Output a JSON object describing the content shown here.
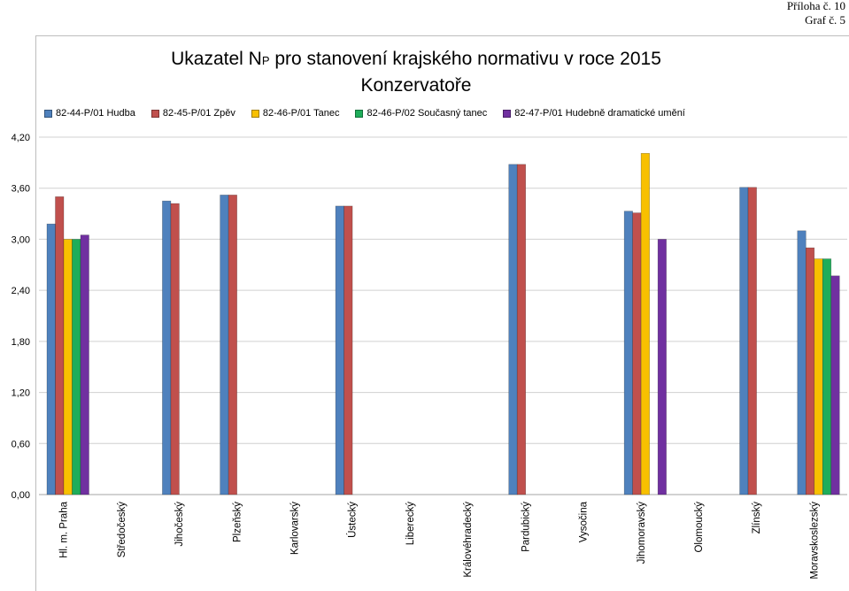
{
  "annex_label": "Příloha č. 10",
  "graph_label": "Graf č. 5",
  "chart_data": {
    "type": "bar",
    "title_main": "Ukazatel N",
    "title_sub": "P",
    "title_rest": " pro stanovení krajského normativu v roce 2015",
    "subtitle": "Konzervatoře",
    "categories": [
      "Hl. m. Praha",
      "Středočeský",
      "Jihočeský",
      "Plzeňský",
      "Karlovarský",
      "Ústecký",
      "Liberecký",
      "Královéhradecký",
      "Pardubický",
      "Vysočina",
      "Jihomoravský",
      "Olomoucký",
      "Zlínský",
      "Moravskoslezský"
    ],
    "series": [
      {
        "name": "82-44-P/01 Hudba",
        "color": "#4f81bd",
        "values": [
          3.18,
          null,
          3.45,
          3.52,
          null,
          3.39,
          null,
          null,
          3.88,
          null,
          3.33,
          null,
          3.61,
          3.1
        ]
      },
      {
        "name": "82-45-P/01 Zpěv",
        "color": "#c0504d",
        "values": [
          3.5,
          null,
          3.42,
          3.52,
          null,
          3.39,
          null,
          null,
          3.88,
          null,
          3.31,
          null,
          3.61,
          2.9
        ]
      },
      {
        "name": "82-46-P/01 Tanec",
        "color": "#f8c000",
        "values": [
          3.0,
          null,
          null,
          null,
          null,
          null,
          null,
          null,
          null,
          null,
          4.01,
          null,
          null,
          2.77
        ]
      },
      {
        "name": "82-46-P/02 Současný tanec",
        "color": "#1fad5a",
        "values": [
          3.0,
          null,
          null,
          null,
          null,
          null,
          null,
          null,
          null,
          null,
          null,
          null,
          null,
          2.77
        ]
      },
      {
        "name": "82-47-P/01 Hudebně dramatické umění",
        "color": "#7030a0",
        "values": [
          3.05,
          null,
          null,
          null,
          null,
          null,
          null,
          null,
          null,
          null,
          3.0,
          null,
          null,
          2.57
        ]
      }
    ],
    "yticks": [
      "0,00",
      "0,60",
      "1,20",
      "1,80",
      "2,40",
      "3,00",
      "3,60",
      "4,20"
    ],
    "ylim": [
      0,
      4.2
    ],
    "grid": true,
    "legend_position": "top"
  }
}
